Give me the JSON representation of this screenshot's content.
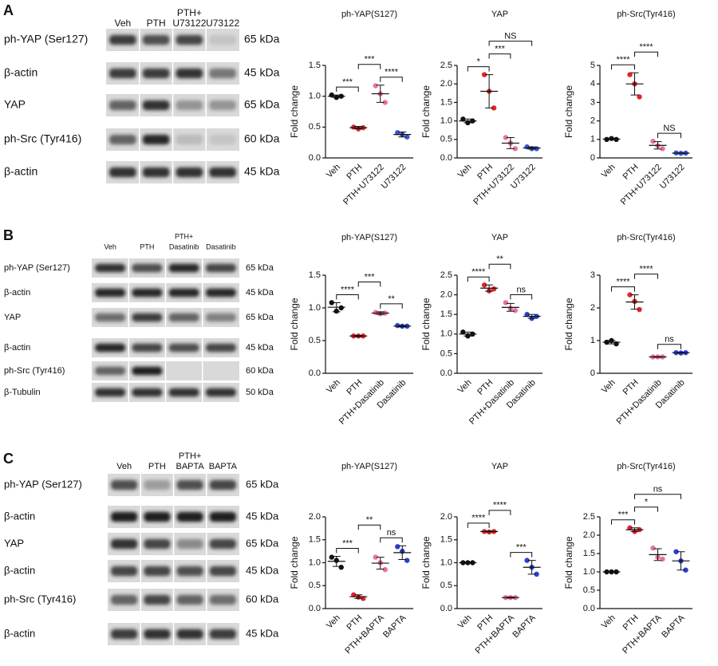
{
  "panels": [
    "A",
    "B",
    "C"
  ],
  "blots": [
    {
      "lanes": [
        [
          "Veh"
        ],
        [
          "PTH"
        ],
        [
          "PTH+",
          "U73122"
        ],
        [
          "U73122"
        ]
      ],
      "rows": [
        {
          "label": "ph-YAP (Ser127)",
          "kda": "65 kDa"
        },
        {
          "label": "β-actin",
          "kda": "45 kDa"
        },
        {
          "label": "YAP",
          "kda": "65 kDa"
        },
        {
          "label": "ph-Src (Tyr416)",
          "kda": "60 kDa"
        },
        {
          "label": "β-actin",
          "kda": "45 kDa"
        }
      ]
    },
    {
      "lanes": [
        [
          "Veh"
        ],
        [
          "PTH"
        ],
        [
          "PTH+",
          "Dasatinib"
        ],
        [
          "Dasatinib"
        ]
      ],
      "rows": [
        {
          "label": "ph-YAP (Ser127)",
          "kda": "65 kDa"
        },
        {
          "label": "β-actin",
          "kda": "45 kDa"
        },
        {
          "label": "YAP",
          "kda": "65 kDa"
        },
        {
          "label": "β-actin",
          "kda": "45 kDa"
        },
        {
          "label": "ph-Src (Tyr416)",
          "kda": "60 kDa"
        },
        {
          "label": "β-Tubulin",
          "kda": "50 kDa"
        }
      ]
    },
    {
      "lanes": [
        [
          "Veh"
        ],
        [
          "PTH"
        ],
        [
          "PTH+",
          "BAPTA"
        ],
        [
          "BAPTA"
        ]
      ],
      "rows": [
        {
          "label": "ph-YAP (Ser127)",
          "kda": "65 kDa"
        },
        {
          "label": "β-actin",
          "kda": "45 kDa"
        },
        {
          "label": "YAP",
          "kda": "65 kDa"
        },
        {
          "label": "β-actin",
          "kda": "45 kDa"
        },
        {
          "label": "ph-Src (Tyr416)",
          "kda": "60 kDa"
        },
        {
          "label": "β-actin",
          "kda": "45 kDa"
        }
      ]
    }
  ],
  "chart_data": [
    {
      "type": "dot",
      "title": "ph-YAP(S127)",
      "ylabel": "Fold change",
      "categories": [
        "Veh",
        "PTH",
        "PTH+U73122",
        "U73122"
      ],
      "colors": [
        "#111111",
        "#e0262a",
        "#e8739f",
        "#3a56d4"
      ],
      "points": [
        [
          1.02,
          0.98,
          1.0
        ],
        [
          0.5,
          0.47,
          0.49
        ],
        [
          1.17,
          1.04,
          0.9
        ],
        [
          0.41,
          0.38,
          0.34
        ]
      ],
      "means": [
        1.0,
        0.49,
        1.04,
        0.38
      ],
      "errors": [
        0.02,
        0.02,
        0.14,
        0.04
      ],
      "ylim": [
        0,
        1.5
      ],
      "yticks": [
        {
          "value": 0,
          "label": "0.0"
        },
        0.5,
        {
          "value": 1,
          "label": "1.0"
        },
        1.5
      ],
      "comparisons": [
        {
          "label": "***",
          "between": [
            "Veh",
            "PTH"
          ]
        },
        {
          "label": "****",
          "between": [
            "PTH+U73122",
            "U73122"
          ]
        },
        {
          "label": "***",
          "between": [
            "PTH",
            "PTH+U73122"
          ]
        }
      ]
    },
    {
      "type": "dot",
      "title": "YAP",
      "ylabel": "Fold change",
      "categories": [
        "Veh",
        "PTH",
        "PTH+U73122",
        "U73122"
      ],
      "colors": [
        "#111111",
        "#e0262a",
        "#e8739f",
        "#3a56d4"
      ],
      "points": [
        [
          1.05,
          0.95,
          1.0
        ],
        [
          2.25,
          1.8,
          1.35
        ],
        [
          0.55,
          0.4,
          0.25
        ],
        [
          0.3,
          0.25,
          0.25
        ]
      ],
      "means": [
        1.0,
        1.8,
        0.4,
        0.27
      ],
      "errors": [
        0.05,
        0.45,
        0.15,
        0.03
      ],
      "ylim": [
        0,
        2.5
      ],
      "yticks": [
        {
          "value": 0,
          "label": "0.0"
        },
        0.5,
        {
          "value": 1,
          "label": "1.0"
        },
        1.5,
        {
          "value": 2,
          "label": "2.0"
        },
        2.5
      ],
      "comparisons": [
        {
          "label": "*",
          "between": [
            "Veh",
            "PTH"
          ]
        },
        {
          "label": "***",
          "between": [
            "PTH",
            "PTH+U73122"
          ]
        },
        {
          "label": "NS",
          "between": [
            "PTH",
            "U73122"
          ]
        }
      ]
    },
    {
      "type": "dot",
      "title": "ph-Src(Tyr416)",
      "ylabel": "Fold change",
      "categories": [
        "Veh",
        "PTH",
        "PTH+U73122",
        "U73122"
      ],
      "colors": [
        "#111111",
        "#e0262a",
        "#e8739f",
        "#3a56d4"
      ],
      "points": [
        [
          1.0,
          1.05,
          1.0
        ],
        [
          4.5,
          4.0,
          3.3
        ],
        [
          0.9,
          0.65,
          0.5
        ],
        [
          0.27,
          0.25,
          0.26
        ]
      ],
      "means": [
        1.02,
        4.0,
        0.68,
        0.26
      ],
      "errors": [
        0.03,
        0.6,
        0.2,
        0.01
      ],
      "ylim": [
        0,
        5
      ],
      "yticks": [
        0,
        1,
        2,
        3,
        4,
        5
      ],
      "comparisons": [
        {
          "label": "****",
          "between": [
            "Veh",
            "PTH"
          ]
        },
        {
          "label": "NS",
          "between": [
            "PTH+U73122",
            "U73122"
          ]
        },
        {
          "label": "****",
          "between": [
            "PTH",
            "PTH+U73122"
          ]
        }
      ]
    },
    {
      "type": "dot",
      "title": "ph-YAP(S127)",
      "ylabel": "Fold change",
      "categories": [
        "Veh",
        "PTH",
        "PTH+Dasatinib",
        "Dasatinib"
      ],
      "colors": [
        "#111111",
        "#e0262a",
        "#e8739f",
        "#2b3fd1"
      ],
      "points": [
        [
          1.08,
          0.95,
          1.0
        ],
        [
          0.57,
          0.57,
          0.57
        ],
        [
          0.93,
          0.91,
          0.92
        ],
        [
          0.73,
          0.72,
          0.72
        ]
      ],
      "means": [
        1.01,
        0.57,
        0.92,
        0.72
      ],
      "errors": [
        0.07,
        0.01,
        0.02,
        0.01
      ],
      "ylim": [
        0,
        1.5
      ],
      "yticks": [
        {
          "value": 0,
          "label": "0.0"
        },
        0.5,
        {
          "value": 1,
          "label": "1.0"
        },
        1.5
      ],
      "comparisons": [
        {
          "label": "****",
          "between": [
            "Veh",
            "PTH"
          ]
        },
        {
          "label": "**",
          "between": [
            "PTH+Dasatinib",
            "Dasatinib"
          ]
        },
        {
          "label": "***",
          "between": [
            "PTH",
            "PTH+Dasatinib"
          ]
        }
      ]
    },
    {
      "type": "dot",
      "title": "YAP",
      "ylabel": "Fold change",
      "categories": [
        "Veh",
        "PTH",
        "PTH+Dasatinib",
        "Dasatinib"
      ],
      "colors": [
        "#111111",
        "#e0262a",
        "#e8739f",
        "#2b3fd1"
      ],
      "points": [
        [
          1.05,
          0.95,
          1.0
        ],
        [
          2.25,
          2.1,
          2.15
        ],
        [
          1.8,
          1.65,
          1.6
        ],
        [
          1.5,
          1.4,
          1.45
        ]
      ],
      "means": [
        1.0,
        2.17,
        1.68,
        1.45
      ],
      "errors": [
        0.05,
        0.08,
        0.1,
        0.05
      ],
      "ylim": [
        0,
        2.5
      ],
      "yticks": [
        {
          "value": 0,
          "label": "0.0"
        },
        0.5,
        {
          "value": 1,
          "label": "1.0"
        },
        1.5,
        {
          "value": 2,
          "label": "2.0"
        },
        2.5
      ],
      "comparisons": [
        {
          "label": "****",
          "between": [
            "Veh",
            "PTH"
          ]
        },
        {
          "label": "ns",
          "between": [
            "PTH+Dasatinib",
            "Dasatinib"
          ]
        },
        {
          "label": "**",
          "between": [
            "PTH",
            "PTH+Dasatinib"
          ]
        }
      ]
    },
    {
      "type": "dot",
      "title": "ph-Src(Tyr416)",
      "ylabel": "Fold change",
      "categories": [
        "Veh",
        "PTH",
        "PTH+Dasatinib",
        "Dasatinib"
      ],
      "colors": [
        "#111111",
        "#e0262a",
        "#e8739f",
        "#2b3fd1"
      ],
      "points": [
        [
          0.95,
          1.0,
          0.9
        ],
        [
          2.4,
          2.2,
          1.95
        ],
        [
          0.5,
          0.5,
          0.5
        ],
        [
          0.63,
          0.62,
          0.63
        ]
      ],
      "means": [
        0.95,
        2.18,
        0.5,
        0.63
      ],
      "errors": [
        0.05,
        0.22,
        0.01,
        0.01
      ],
      "ylim": [
        0,
        3
      ],
      "yticks": [
        0,
        1,
        2,
        3
      ],
      "comparisons": [
        {
          "label": "****",
          "between": [
            "Veh",
            "PTH"
          ]
        },
        {
          "label": "ns",
          "between": [
            "PTH+Dasatinib",
            "Dasatinib"
          ]
        },
        {
          "label": "****",
          "between": [
            "PTH",
            "PTH+Dasatinib"
          ]
        }
      ]
    },
    {
      "type": "dot",
      "title": "ph-YAP(S127)",
      "ylabel": "Fold change",
      "categories": [
        "Veh",
        "PTH",
        "PTH+BAPTA",
        "BAPTA"
      ],
      "colors": [
        "#111111",
        "#e0262a",
        "#e8739f",
        "#2b3fd1"
      ],
      "points": [
        [
          1.12,
          1.05,
          0.9
        ],
        [
          0.3,
          0.25,
          0.22
        ],
        [
          1.12,
          1.0,
          0.85
        ],
        [
          1.35,
          1.25,
          1.05
        ]
      ],
      "means": [
        1.03,
        0.26,
        0.99,
        1.22
      ],
      "errors": [
        0.11,
        0.04,
        0.13,
        0.15
      ],
      "ylim": [
        0,
        2
      ],
      "yticks": [
        {
          "value": 0,
          "label": "0.0"
        },
        0.5,
        {
          "value": 1,
          "label": "1.0"
        },
        1.5,
        {
          "value": 2,
          "label": "2.0"
        }
      ],
      "comparisons": [
        {
          "label": "***",
          "between": [
            "Veh",
            "PTH"
          ]
        },
        {
          "label": "ns",
          "between": [
            "PTH+BAPTA",
            "BAPTA"
          ]
        },
        {
          "label": "**",
          "between": [
            "PTH",
            "PTH+BAPTA"
          ]
        }
      ]
    },
    {
      "type": "dot",
      "title": "YAP",
      "ylabel": "Fold change",
      "categories": [
        "Veh",
        "PTH",
        "PTH+BAPTA",
        "BAPTA"
      ],
      "colors": [
        "#111111",
        "#e0262a",
        "#e8739f",
        "#2b3fd1"
      ],
      "points": [
        [
          1.0,
          1.0,
          1.0
        ],
        [
          1.68,
          1.67,
          1.68
        ],
        [
          0.24,
          0.24,
          0.24
        ],
        [
          1.05,
          0.9,
          0.75
        ]
      ],
      "means": [
        1.0,
        1.68,
        0.24,
        0.9
      ],
      "errors": [
        0.01,
        0.01,
        0.01,
        0.15
      ],
      "ylim": [
        0,
        2
      ],
      "yticks": [
        {
          "value": 0,
          "label": "0.0"
        },
        0.5,
        {
          "value": 1,
          "label": "1.0"
        },
        1.5,
        {
          "value": 2,
          "label": "2.0"
        }
      ],
      "comparisons": [
        {
          "label": "****",
          "between": [
            "Veh",
            "PTH"
          ]
        },
        {
          "label": "***",
          "between": [
            "PTH+BAPTA",
            "BAPTA"
          ]
        },
        {
          "label": "****",
          "between": [
            "PTH",
            "PTH+BAPTA"
          ]
        }
      ]
    },
    {
      "type": "dot",
      "title": "ph-Src(Tyr416)",
      "ylabel": "Fold change",
      "categories": [
        "Veh",
        "PTH",
        "PTH+BAPTA",
        "BAPTA"
      ],
      "colors": [
        "#111111",
        "#e0262a",
        "#e8739f",
        "#2b3fd1"
      ],
      "points": [
        [
          1.0,
          1.0,
          1.0
        ],
        [
          2.2,
          2.1,
          2.15
        ],
        [
          1.65,
          1.4,
          1.35
        ],
        [
          1.55,
          1.3,
          1.05
        ]
      ],
      "means": [
        1.0,
        2.15,
        1.47,
        1.3
      ],
      "errors": [
        0.01,
        0.05,
        0.16,
        0.25
      ],
      "ylim": [
        0,
        2.5
      ],
      "yticks": [
        {
          "value": 0,
          "label": "0.0"
        },
        0.5,
        {
          "value": 1,
          "label": "1.0"
        },
        1.5,
        {
          "value": 2,
          "label": "2.0"
        },
        2.5
      ],
      "comparisons": [
        {
          "label": "***",
          "between": [
            "Veh",
            "PTH"
          ]
        },
        {
          "label": "*",
          "between": [
            "PTH",
            "PTH+BAPTA"
          ]
        },
        {
          "label": "ns",
          "between": [
            "PTH",
            "BAPTA"
          ]
        }
      ]
    }
  ]
}
